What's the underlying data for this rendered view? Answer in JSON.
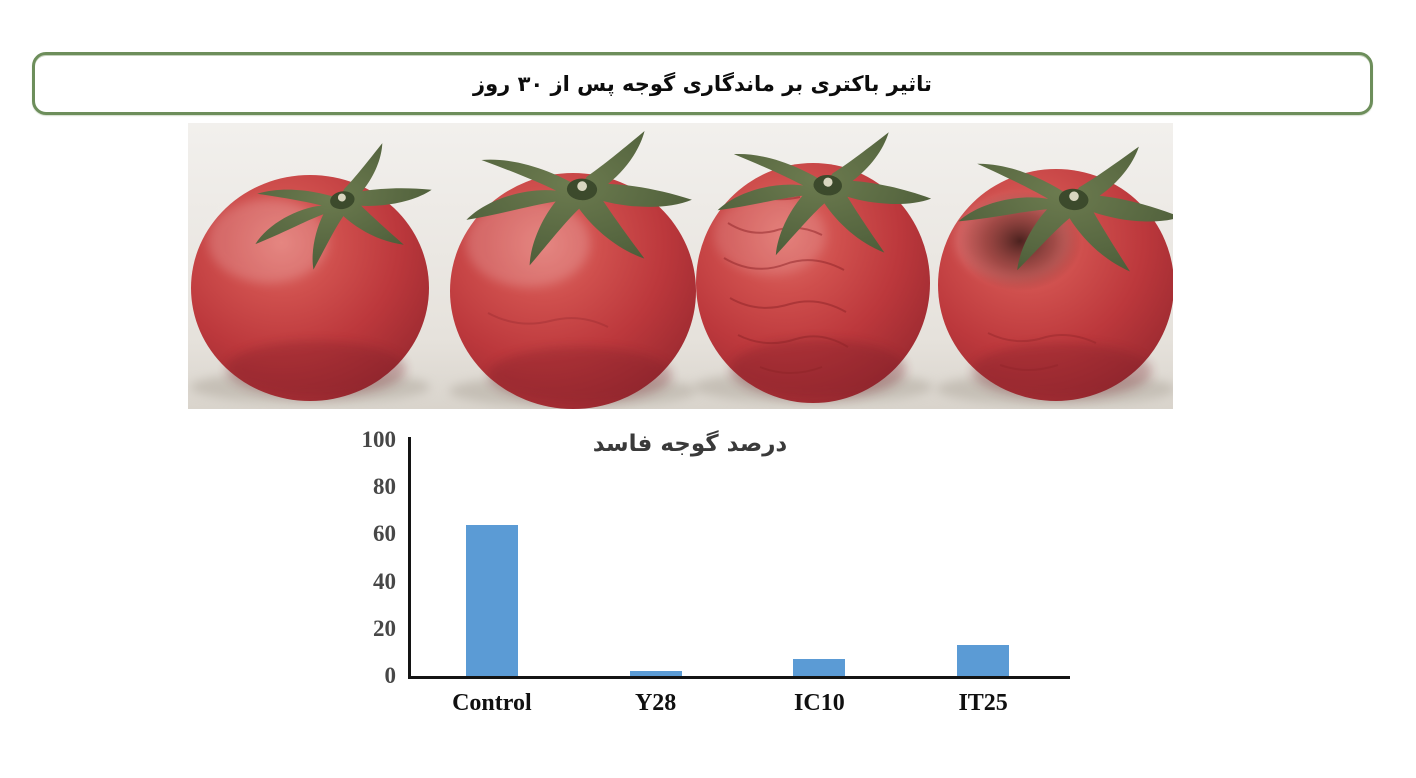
{
  "banner": {
    "title": "تاثیر باکتری بر ماندگاری گوجه پس از ۳۰ روز",
    "border_color": "#6d8e5b"
  },
  "photo": {
    "description": "چهار گوجه فرنگی قرمز با کاسبرگ سبز روی زمینه روشن؛ گوجه سوم چروکیده و گوجه چهارم دارای لکه فاسد"
  },
  "chart_data": {
    "type": "bar",
    "title": "درصد گوجه فاسد",
    "categories": [
      "Control",
      "Y28",
      "IC10",
      "IT25"
    ],
    "values": [
      64,
      2,
      7,
      13
    ],
    "yticks": [
      0,
      20,
      40,
      60,
      80,
      100
    ],
    "ylim": [
      0,
      100
    ],
    "xlabel": "",
    "ylabel": "",
    "grid": false,
    "legend": "none",
    "bar_color": "#5b9bd5",
    "axis_color": "#141414"
  }
}
